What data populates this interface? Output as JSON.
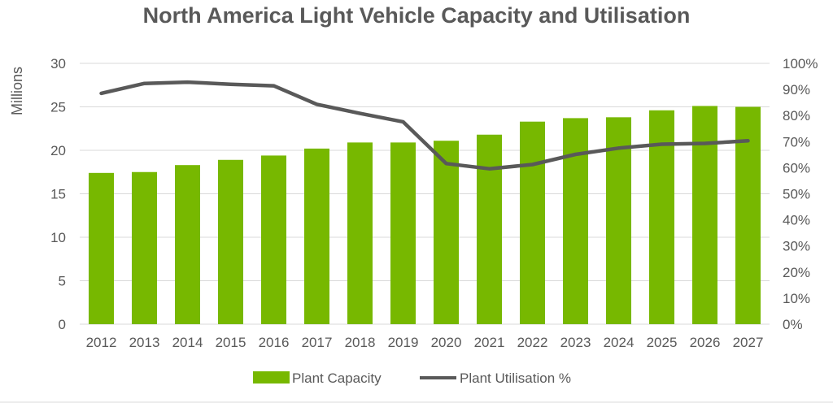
{
  "chart_data": {
    "type": "bar",
    "title": "North America Light Vehicle Capacity and Utilisation",
    "ylabel": "Millions",
    "y2label": "",
    "categories": [
      "2012",
      "2013",
      "2014",
      "2015",
      "2016",
      "2017",
      "2018",
      "2019",
      "2020",
      "2021",
      "2022",
      "2023",
      "2024",
      "2025",
      "2026",
      "2027"
    ],
    "ylim": [
      0,
      30
    ],
    "yticks": [
      "0",
      "5",
      "10",
      "15",
      "20",
      "25",
      "30"
    ],
    "y2lim": [
      0,
      100
    ],
    "y2ticks": [
      "0%",
      "10%",
      "20%",
      "30%",
      "40%",
      "50%",
      "60%",
      "70%",
      "80%",
      "90%",
      "100%"
    ],
    "grid": true,
    "legend_position": "bottom",
    "series": [
      {
        "name": "Plant Capacity",
        "type": "bar",
        "axis": "left",
        "color": "#77B800",
        "values": [
          17.4,
          17.5,
          18.3,
          18.9,
          19.4,
          20.2,
          20.9,
          20.9,
          21.1,
          21.8,
          23.3,
          23.7,
          23.8,
          24.6,
          25.1,
          25.0
        ]
      },
      {
        "name": "Plant Utilisation %",
        "type": "line",
        "axis": "right",
        "color": "#595959",
        "values": [
          88.5,
          92.3,
          92.8,
          92.0,
          91.4,
          84.3,
          80.8,
          77.6,
          61.6,
          59.6,
          61.2,
          65.1,
          67.5,
          69.0,
          69.3,
          70.3
        ]
      }
    ]
  }
}
